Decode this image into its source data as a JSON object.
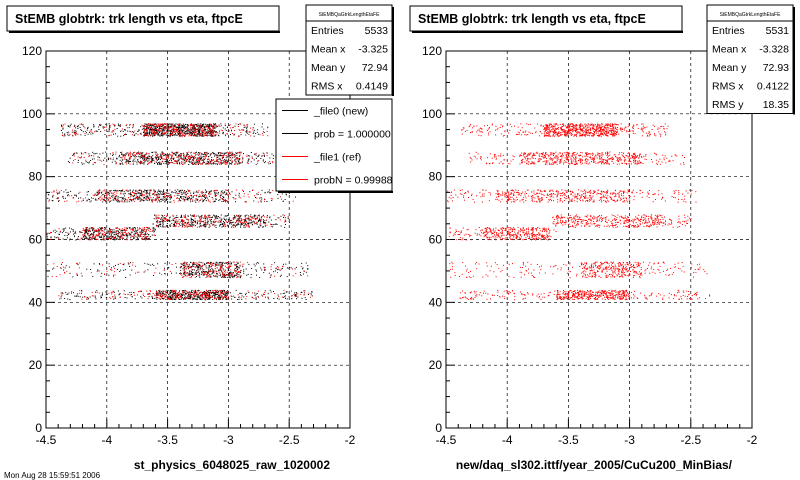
{
  "colors": {
    "background": "#ffffff",
    "frame": "#000000",
    "grid": "#000000",
    "series_new": "#000000",
    "series_ref": "#ff0000",
    "stats_box": "#ffffff"
  },
  "footer_text": "Mon Aug 28 15:59:51 2006",
  "chart_data": [
    {
      "type": "scatter",
      "title": "StEMB globtrk: trk length vs eta, ftpcE",
      "xlabel": "st_physics_6048025_raw_1020002",
      "ylabel": "",
      "xlim": [
        -4.5,
        -2
      ],
      "ylim": [
        0,
        120
      ],
      "xticks": [
        -4.5,
        -4,
        -3.5,
        -3,
        -2.5,
        -2
      ],
      "xtick_labels": [
        "-4.5",
        "-4",
        "-3.5",
        "-3",
        "-2.5",
        "-2"
      ],
      "yticks": [
        0,
        20,
        40,
        60,
        80,
        100,
        120
      ],
      "ytick_labels": [
        "0",
        "20",
        "40",
        "60",
        "80",
        "100",
        "120"
      ],
      "grid": true,
      "stats": {
        "name": "StEMBQaGtrkLengthEtaFE",
        "rows": [
          {
            "label": "Entries",
            "value": "5533"
          },
          {
            "label": "Mean x",
            "value": "-3.325"
          },
          {
            "label": "Mean y",
            "value": "72.94"
          },
          {
            "label": "RMS x",
            "value": "0.4149"
          }
        ]
      },
      "legend": {
        "placement": "top-right",
        "entries": [
          {
            "label": "_file0 (new)",
            "color": "#000000"
          },
          {
            "label": "prob = 1.000000",
            "color": "#000000"
          },
          {
            "label": "_file1 (ref)",
            "color": "#ff0000"
          },
          {
            "label": "probN = 0.99988",
            "color": "#ff0000"
          }
        ]
      },
      "series": [
        {
          "color": "#000000",
          "points_per_unit": 1.0,
          "bands": [
            {
              "y_range": [
                93,
                97
              ],
              "x_range": [
                -4.38,
                -2.68
              ],
              "dense": [
                -3.7,
                -3.1
              ],
              "count": 800
            },
            {
              "y_range": [
                84,
                88
              ],
              "x_range": [
                -4.32,
                -2.55
              ],
              "dense": [
                -3.9,
                -2.9
              ],
              "count": 600
            },
            {
              "y_range": [
                72,
                76
              ],
              "x_range": [
                -4.5,
                -2.45
              ],
              "dense": [
                -4.1,
                -3.0
              ],
              "count": 520
            },
            {
              "y_range": [
                64,
                68
              ],
              "x_range": [
                -3.65,
                -2.5
              ],
              "dense": [
                -3.6,
                -2.7
              ],
              "count": 420
            },
            {
              "y_range": [
                60,
                64
              ],
              "x_range": [
                -4.55,
                -3.6
              ],
              "dense": [
                -4.2,
                -3.65
              ],
              "count": 380
            },
            {
              "y_range": [
                48,
                53
              ],
              "x_range": [
                -4.6,
                -2.35
              ],
              "dense": [
                -3.4,
                -2.9
              ],
              "count": 450
            },
            {
              "y_range": [
                41,
                44
              ],
              "x_range": [
                -4.4,
                -2.3
              ],
              "dense": [
                -3.6,
                -3.0
              ],
              "count": 550
            }
          ]
        },
        {
          "color": "#ff0000",
          "points_per_unit": 0.55,
          "bands": [
            {
              "y_range": [
                93,
                97
              ],
              "x_range": [
                -4.38,
                -2.68
              ],
              "dense": [
                -3.7,
                -3.1
              ],
              "count": 800
            },
            {
              "y_range": [
                84,
                88
              ],
              "x_range": [
                -4.32,
                -2.55
              ],
              "dense": [
                -3.9,
                -2.9
              ],
              "count": 600
            },
            {
              "y_range": [
                72,
                76
              ],
              "x_range": [
                -4.5,
                -2.45
              ],
              "dense": [
                -4.1,
                -3.0
              ],
              "count": 520
            },
            {
              "y_range": [
                64,
                68
              ],
              "x_range": [
                -3.65,
                -2.5
              ],
              "dense": [
                -3.6,
                -2.7
              ],
              "count": 420
            },
            {
              "y_range": [
                60,
                64
              ],
              "x_range": [
                -4.55,
                -3.6
              ],
              "dense": [
                -4.2,
                -3.65
              ],
              "count": 380
            },
            {
              "y_range": [
                48,
                53
              ],
              "x_range": [
                -4.6,
                -2.35
              ],
              "dense": [
                -3.4,
                -2.9
              ],
              "count": 450
            },
            {
              "y_range": [
                41,
                44
              ],
              "x_range": [
                -4.4,
                -2.3
              ],
              "dense": [
                -3.6,
                -3.0
              ],
              "count": 550
            }
          ]
        }
      ]
    },
    {
      "type": "scatter",
      "title": "StEMB globtrk: trk length vs eta, ftpcE",
      "xlabel": "new/daq_sl302.ittf/year_2005/CuCu200_MinBias/",
      "ylabel": "",
      "xlim": [
        -4.5,
        -2
      ],
      "ylim": [
        0,
        120
      ],
      "xticks": [
        -4.5,
        -4,
        -3.5,
        -3,
        -2.5,
        -2
      ],
      "xtick_labels": [
        "-4.5",
        "-4",
        "-3.5",
        "-3",
        "-2.5",
        "-2"
      ],
      "yticks": [
        0,
        20,
        40,
        60,
        80,
        100,
        120
      ],
      "ytick_labels": [
        "0",
        "20",
        "40",
        "60",
        "80",
        "100",
        "120"
      ],
      "grid": true,
      "stats": {
        "name": "StEMBQaGtrkLengthEtaFE",
        "rows": [
          {
            "label": "Entries",
            "value": "5531"
          },
          {
            "label": "Mean x",
            "value": "-3.328"
          },
          {
            "label": "Mean y",
            "value": "72.93"
          },
          {
            "label": "RMS x",
            "value": "0.4122"
          },
          {
            "label": "RMS y",
            "value": "18.35"
          }
        ]
      },
      "series": [
        {
          "color": "#ff0000",
          "points_per_unit": 1.0,
          "bands": [
            {
              "y_range": [
                93,
                97
              ],
              "x_range": [
                -4.38,
                -2.68
              ],
              "dense": [
                -3.7,
                -3.1
              ],
              "count": 800
            },
            {
              "y_range": [
                84,
                88
              ],
              "x_range": [
                -4.32,
                -2.55
              ],
              "dense": [
                -3.9,
                -2.9
              ],
              "count": 600
            },
            {
              "y_range": [
                72,
                76
              ],
              "x_range": [
                -4.5,
                -2.45
              ],
              "dense": [
                -4.1,
                -3.0
              ],
              "count": 520
            },
            {
              "y_range": [
                64,
                68
              ],
              "x_range": [
                -3.65,
                -2.5
              ],
              "dense": [
                -3.6,
                -2.7
              ],
              "count": 420
            },
            {
              "y_range": [
                60,
                64
              ],
              "x_range": [
                -4.55,
                -3.6
              ],
              "dense": [
                -4.2,
                -3.65
              ],
              "count": 380
            },
            {
              "y_range": [
                48,
                53
              ],
              "x_range": [
                -4.6,
                -2.35
              ],
              "dense": [
                -3.4,
                -2.9
              ],
              "count": 450
            },
            {
              "y_range": [
                41,
                44
              ],
              "x_range": [
                -4.4,
                -2.3
              ],
              "dense": [
                -3.6,
                -3.0
              ],
              "count": 550
            }
          ]
        }
      ]
    }
  ]
}
